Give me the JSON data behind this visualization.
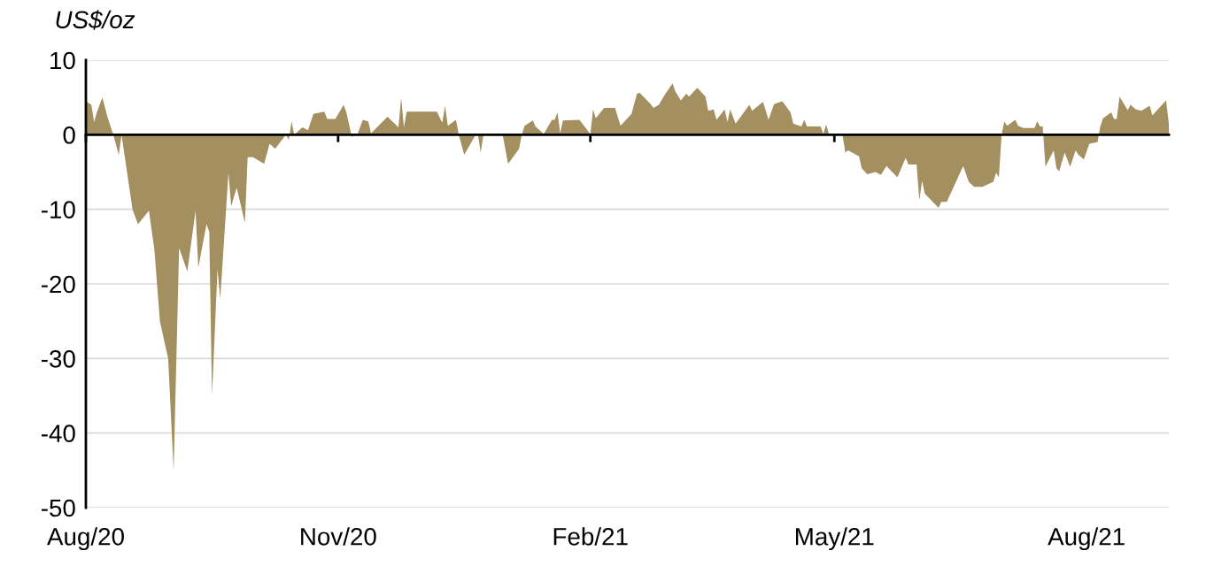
{
  "chart_data": {
    "type": "area",
    "ylabel": "US$/oz",
    "x": [
      "2020-08-01",
      "2020-08-03",
      "2020-08-04",
      "2020-08-05",
      "2020-08-07",
      "2020-08-09",
      "2020-08-11",
      "2020-08-13",
      "2020-08-14",
      "2020-08-18",
      "2020-08-20",
      "2020-08-24",
      "2020-08-26",
      "2020-08-28",
      "2020-08-31",
      "2020-09-02",
      "2020-09-04",
      "2020-09-07",
      "2020-09-10",
      "2020-09-11",
      "2020-09-14",
      "2020-09-15",
      "2020-09-16",
      "2020-09-18",
      "2020-09-19",
      "2020-09-22",
      "2020-09-23",
      "2020-09-25",
      "2020-09-28",
      "2020-09-29",
      "2020-10-01",
      "2020-10-05",
      "2020-10-07",
      "2020-10-09",
      "2020-10-13",
      "2020-10-14",
      "2020-10-15",
      "2020-10-16",
      "2020-10-19",
      "2020-10-21",
      "2020-10-23",
      "2020-10-27",
      "2020-10-28",
      "2020-10-31",
      "2020-11-03",
      "2020-11-04",
      "2020-11-06",
      "2020-11-08",
      "2020-11-10",
      "2020-11-12",
      "2020-11-13",
      "2020-11-19",
      "2020-11-23",
      "2020-11-24",
      "2020-11-25",
      "2020-11-26",
      "2020-12-07",
      "2020-12-09",
      "2020-12-10",
      "2020-12-11",
      "2020-12-14",
      "2020-12-15",
      "2020-12-17",
      "2020-12-21",
      "2020-12-22",
      "2020-12-23",
      "2020-12-24",
      "2020-12-31",
      "2021-01-02",
      "2021-01-06",
      "2021-01-07",
      "2021-01-08",
      "2021-01-11",
      "2021-01-12",
      "2021-01-15",
      "2021-01-18",
      "2021-01-19",
      "2021-01-20",
      "2021-01-21",
      "2021-01-22",
      "2021-01-28",
      "2021-02-01",
      "2021-02-02",
      "2021-02-03",
      "2021-02-06",
      "2021-02-10",
      "2021-02-12",
      "2021-02-16",
      "2021-02-18",
      "2021-02-19",
      "2021-02-23",
      "2021-02-24",
      "2021-02-26",
      "2021-02-28",
      "2021-03-03",
      "2021-03-04",
      "2021-03-06",
      "2021-03-08",
      "2021-03-09",
      "2021-03-12",
      "2021-03-15",
      "2021-03-16",
      "2021-03-18",
      "2021-03-19",
      "2021-03-22",
      "2021-03-23",
      "2021-03-24",
      "2021-03-26",
      "2021-03-31",
      "2021-04-01",
      "2021-04-05",
      "2021-04-07",
      "2021-04-09",
      "2021-04-12",
      "2021-04-15",
      "2021-04-16",
      "2021-04-19",
      "2021-04-20",
      "2021-04-21",
      "2021-04-26",
      "2021-04-27",
      "2021-04-28",
      "2021-04-29",
      "2021-05-03",
      "2021-05-04",
      "2021-05-05",
      "2021-05-06",
      "2021-05-10",
      "2021-05-11",
      "2021-05-13",
      "2021-05-16",
      "2021-05-18",
      "2021-05-20",
      "2021-05-24",
      "2021-05-27",
      "2021-05-28",
      "2021-05-31",
      "2021-06-01",
      "2021-06-02",
      "2021-06-03",
      "2021-06-08",
      "2021-06-09",
      "2021-06-11",
      "2021-06-17",
      "2021-06-19",
      "2021-06-21",
      "2021-06-24",
      "2021-06-28",
      "2021-06-29",
      "2021-06-30",
      "2021-07-01",
      "2021-07-02",
      "2021-07-03",
      "2021-07-06",
      "2021-07-07",
      "2021-07-09",
      "2021-07-13",
      "2021-07-14",
      "2021-07-15",
      "2021-07-16",
      "2021-07-17",
      "2021-07-20",
      "2021-07-21",
      "2021-07-22",
      "2021-07-24",
      "2021-07-26",
      "2021-07-28",
      "2021-07-29",
      "2021-07-31",
      "2021-08-02",
      "2021-08-05",
      "2021-08-06",
      "2021-08-07",
      "2021-08-10",
      "2021-08-11",
      "2021-08-12",
      "2021-08-13",
      "2021-08-16",
      "2021-08-17",
      "2021-08-19",
      "2021-08-21",
      "2021-08-24",
      "2021-08-25",
      "2021-08-26",
      "2021-08-28",
      "2021-08-30",
      "2021-08-31"
    ],
    "series": [
      {
        "color": "#a38f5f",
        "values": [
          4.5,
          4,
          1.7,
          3,
          5,
          2.2,
          0,
          -2.7,
          0,
          -10,
          -12,
          -10.2,
          -15.5,
          -25,
          -30,
          -45,
          -15.2,
          -18.3,
          -10.2,
          -17.8,
          -12,
          -13,
          -35,
          -18,
          -22,
          -5.1,
          -9.6,
          -7.1,
          -11.8,
          -3,
          -3,
          -3.9,
          -1.2,
          -1.9,
          0,
          -0.7,
          1.8,
          0,
          1,
          0.6,
          2.8,
          3.1,
          2.1,
          2.1,
          4,
          3,
          -0.3,
          0,
          2,
          1.8,
          0.2,
          2.4,
          1,
          5,
          1,
          3.1,
          3.1,
          1.6,
          3.9,
          1.2,
          2,
          0,
          -2.7,
          -0.1,
          0,
          -2.4,
          0,
          0,
          -3.9,
          -1.9,
          0,
          1.2,
          1.9,
          1.1,
          0.1,
          2,
          2,
          3,
          0.2,
          1.9,
          2,
          0.1,
          3.4,
          2.2,
          3.6,
          3.6,
          1.2,
          2.8,
          5.5,
          5.6,
          4.1,
          3.6,
          4,
          5.3,
          6.9,
          5.8,
          4.6,
          5.5,
          5.1,
          6.3,
          5.1,
          3.2,
          3.4,
          2,
          3.4,
          1.7,
          3.4,
          1.5,
          4,
          3.2,
          4.4,
          2,
          4.1,
          4.5,
          3,
          1.5,
          1.1,
          2,
          1.1,
          1.1,
          0.1,
          1.4,
          0.1,
          0,
          -0.1,
          -2.4,
          -2.1,
          -2.9,
          -4.5,
          -5.3,
          -5,
          -5.4,
          -4.2,
          -5.7,
          -3.1,
          -4,
          -4,
          -8.8,
          -6.2,
          -7.9,
          -9.8,
          -9,
          -9,
          -4.2,
          -6.3,
          -7,
          -7,
          -6.3,
          -5.1,
          -5.7,
          0,
          1.8,
          1.2,
          2,
          1.2,
          0.9,
          0.9,
          1.8,
          1.1,
          1.1,
          -4.3,
          -2.1,
          -4.5,
          -4.9,
          -2.4,
          -4.3,
          -2.1,
          -2.7,
          -3.3,
          -1.2,
          -1,
          1.1,
          2.2,
          3,
          2.1,
          2.1,
          5.1,
          3.3,
          4,
          3.4,
          3.2,
          3.9,
          2.6,
          3,
          3.8,
          4.6,
          1.5
        ]
      }
    ],
    "xlim": [
      "2020-08-01",
      "2021-08-31"
    ],
    "xticks": [
      {
        "value": "2020-08-01",
        "label": "Aug/20"
      },
      {
        "value": "2020-11-01",
        "label": "Nov/20"
      },
      {
        "value": "2021-02-01",
        "label": "Feb/21"
      },
      {
        "value": "2021-05-01",
        "label": "May/21"
      },
      {
        "value": "2021-08-01",
        "label": "Aug/21"
      }
    ],
    "ylim": [
      -50,
      10
    ],
    "yticks": [
      -50,
      -40,
      -30,
      -20,
      -10,
      0,
      10
    ],
    "grid": "y"
  }
}
